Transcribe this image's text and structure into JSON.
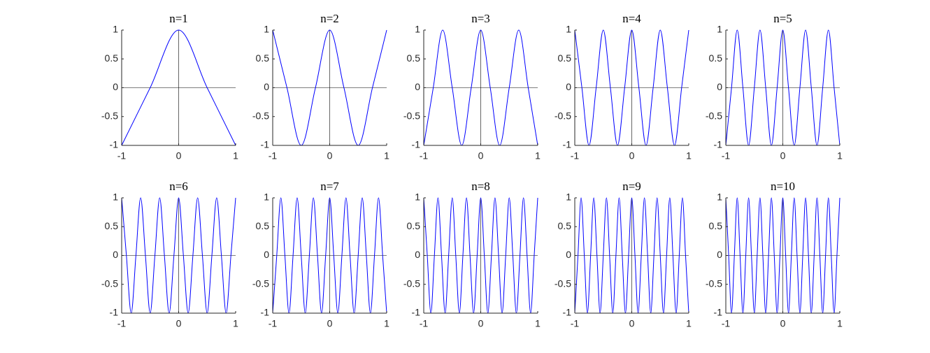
{
  "chart_data": [
    {
      "type": "line",
      "title": "n=1",
      "color": "#0000ff",
      "xlim": [
        -1,
        1
      ],
      "ylim": [
        -1,
        1
      ],
      "xticks": [
        -1,
        0,
        1
      ],
      "yticks": [
        -1,
        -0.5,
        0,
        0.5,
        1
      ],
      "zero_lines": true,
      "x": [
        -1,
        -0.5,
        0,
        0.5,
        1
      ],
      "values": [
        -1,
        0,
        1,
        0,
        -1
      ]
    },
    {
      "type": "line",
      "title": "n=2",
      "color": "#0000ff",
      "xlim": [
        -1,
        1
      ],
      "ylim": [
        -1,
        1
      ],
      "xticks": [
        -1,
        0,
        1
      ],
      "yticks": [
        -1,
        -0.5,
        0,
        0.5,
        1
      ],
      "zero_lines": true,
      "x": [
        -1,
        -0.75,
        -0.5,
        -0.25,
        0,
        0.25,
        0.5,
        0.75,
        1
      ],
      "values": [
        1,
        0,
        -1,
        0,
        1,
        0,
        -1,
        0,
        1
      ]
    },
    {
      "type": "line",
      "title": "n=3",
      "color": "#0000ff",
      "xlim": [
        -1,
        1
      ],
      "ylim": [
        -1,
        1
      ],
      "xticks": [
        -1,
        0,
        1
      ],
      "yticks": [
        -1,
        -0.5,
        0,
        0.5,
        1
      ],
      "zero_lines": true,
      "x": [
        -1,
        -0.833,
        -0.667,
        -0.5,
        -0.333,
        -0.167,
        0,
        0.167,
        0.333,
        0.5,
        0.667,
        0.833,
        1
      ],
      "values": [
        -1,
        0,
        1,
        0,
        -1,
        0,
        1,
        0,
        -1,
        0,
        1,
        0,
        -1
      ]
    },
    {
      "type": "line",
      "title": "n=4",
      "color": "#0000ff",
      "xlim": [
        -1,
        1
      ],
      "ylim": [
        -1,
        1
      ],
      "xticks": [
        -1,
        0,
        1
      ],
      "yticks": [
        -1,
        -0.5,
        0,
        0.5,
        1
      ],
      "zero_lines": true,
      "x": [
        -1,
        -0.875,
        -0.75,
        -0.625,
        -0.5,
        -0.375,
        -0.25,
        -0.125,
        0,
        0.125,
        0.25,
        0.375,
        0.5,
        0.625,
        0.75,
        0.875,
        1
      ],
      "values": [
        1,
        0,
        -1,
        0,
        1,
        0,
        -1,
        0,
        1,
        0,
        -1,
        0,
        1,
        0,
        -1,
        0,
        1
      ]
    },
    {
      "type": "line",
      "title": "n=5",
      "color": "#0000ff",
      "xlim": [
        -1,
        1
      ],
      "ylim": [
        -1,
        1
      ],
      "xticks": [
        -1,
        0,
        1
      ],
      "yticks": [
        -1,
        -0.5,
        0,
        0.5,
        1
      ],
      "zero_lines": true,
      "x": [
        -1,
        -0.9,
        -0.8,
        -0.7,
        -0.6,
        -0.5,
        -0.4,
        -0.3,
        -0.2,
        -0.1,
        0,
        0.1,
        0.2,
        0.3,
        0.4,
        0.5,
        0.6,
        0.7,
        0.8,
        0.9,
        1
      ],
      "values": [
        -1,
        0,
        1,
        0,
        -1,
        0,
        1,
        0,
        -1,
        0,
        1,
        0,
        -1,
        0,
        1,
        0,
        -1,
        0,
        1,
        0,
        -1
      ]
    },
    {
      "type": "line",
      "title": "n=6",
      "color": "#0000ff",
      "xlim": [
        -1,
        1
      ],
      "ylim": [
        -1,
        1
      ],
      "xticks": [
        -1,
        0,
        1
      ],
      "yticks": [
        -1,
        -0.5,
        0,
        0.5,
        1
      ],
      "zero_lines": true,
      "x": [
        -1,
        -0.917,
        -0.833,
        -0.75,
        -0.667,
        -0.583,
        -0.5,
        -0.417,
        -0.333,
        -0.25,
        -0.167,
        -0.083,
        0,
        0.083,
        0.167,
        0.25,
        0.333,
        0.417,
        0.5,
        0.583,
        0.667,
        0.75,
        0.833,
        0.917,
        1
      ],
      "values": [
        1,
        0,
        -1,
        0,
        1,
        0,
        -1,
        0,
        1,
        0,
        -1,
        0,
        1,
        0,
        -1,
        0,
        1,
        0,
        -1,
        0,
        1,
        0,
        -1,
        0,
        1
      ]
    },
    {
      "type": "line",
      "title": "n=7",
      "color": "#0000ff",
      "xlim": [
        -1,
        1
      ],
      "ylim": [
        -1,
        1
      ],
      "xticks": [
        -1,
        0,
        1
      ],
      "yticks": [
        -1,
        -0.5,
        0,
        0.5,
        1
      ],
      "zero_lines": true,
      "x": [
        -1,
        -0.929,
        -0.857,
        -0.786,
        -0.714,
        -0.643,
        -0.571,
        -0.5,
        -0.429,
        -0.357,
        -0.286,
        -0.214,
        -0.143,
        -0.071,
        0,
        0.071,
        0.143,
        0.214,
        0.286,
        0.357,
        0.429,
        0.5,
        0.571,
        0.643,
        0.714,
        0.786,
        0.857,
        0.929,
        1
      ],
      "values": [
        -1,
        0,
        1,
        0,
        -1,
        0,
        1,
        0,
        -1,
        0,
        1,
        0,
        -1,
        0,
        1,
        0,
        -1,
        0,
        1,
        0,
        -1,
        0,
        1,
        0,
        -1,
        0,
        1,
        0,
        -1
      ]
    },
    {
      "type": "line",
      "title": "n=8",
      "color": "#0000ff",
      "xlim": [
        -1,
        1
      ],
      "ylim": [
        -1,
        1
      ],
      "xticks": [
        -1,
        0,
        1
      ],
      "yticks": [
        -1,
        -0.5,
        0,
        0.5,
        1
      ],
      "zero_lines": true,
      "x": [
        -1,
        -0.938,
        -0.875,
        -0.813,
        -0.75,
        -0.688,
        -0.625,
        -0.563,
        -0.5,
        -0.438,
        -0.375,
        -0.313,
        -0.25,
        -0.188,
        -0.125,
        -0.063,
        0,
        0.063,
        0.125,
        0.188,
        0.25,
        0.313,
        0.375,
        0.438,
        0.5,
        0.563,
        0.625,
        0.688,
        0.75,
        0.813,
        0.875,
        0.938,
        1
      ],
      "values": [
        1,
        0,
        -1,
        0,
        1,
        0,
        -1,
        0,
        1,
        0,
        -1,
        0,
        1,
        0,
        -1,
        0,
        1,
        0,
        -1,
        0,
        1,
        0,
        -1,
        0,
        1,
        0,
        -1,
        0,
        1,
        0,
        -1,
        0,
        1
      ]
    },
    {
      "type": "line",
      "title": "n=9",
      "color": "#0000ff",
      "xlim": [
        -1,
        1
      ],
      "ylim": [
        -1,
        1
      ],
      "xticks": [
        -1,
        0,
        1
      ],
      "yticks": [
        -1,
        -0.5,
        0,
        0.5,
        1
      ],
      "zero_lines": true,
      "x": [
        -1,
        -0.944,
        -0.889,
        -0.833,
        -0.778,
        -0.722,
        -0.667,
        -0.611,
        -0.556,
        -0.5,
        -0.444,
        -0.389,
        -0.333,
        -0.278,
        -0.222,
        -0.167,
        -0.111,
        -0.056,
        0,
        0.056,
        0.111,
        0.167,
        0.222,
        0.278,
        0.333,
        0.389,
        0.444,
        0.5,
        0.556,
        0.611,
        0.667,
        0.722,
        0.778,
        0.833,
        0.889,
        0.944,
        1
      ],
      "values": [
        -1,
        0,
        1,
        0,
        -1,
        0,
        1,
        0,
        -1,
        0,
        1,
        0,
        -1,
        0,
        1,
        0,
        -1,
        0,
        1,
        0,
        -1,
        0,
        1,
        0,
        -1,
        0,
        1,
        0,
        -1,
        0,
        1,
        0,
        -1,
        0,
        1,
        0,
        -1
      ]
    },
    {
      "type": "line",
      "title": "n=10",
      "color": "#0000ff",
      "xlim": [
        -1,
        1
      ],
      "ylim": [
        -1,
        1
      ],
      "xticks": [
        -1,
        0,
        1
      ],
      "yticks": [
        -1,
        -0.5,
        0,
        0.5,
        1
      ],
      "zero_lines": true,
      "x": [
        -1,
        -0.95,
        -0.9,
        -0.85,
        -0.8,
        -0.75,
        -0.7,
        -0.65,
        -0.6,
        -0.55,
        -0.5,
        -0.45,
        -0.4,
        -0.35,
        -0.3,
        -0.25,
        -0.2,
        -0.15,
        -0.1,
        -0.05,
        0,
        0.05,
        0.1,
        0.15,
        0.2,
        0.25,
        0.3,
        0.35,
        0.4,
        0.45,
        0.5,
        0.55,
        0.6,
        0.65,
        0.7,
        0.75,
        0.8,
        0.85,
        0.9,
        0.95,
        1
      ],
      "values": [
        1,
        0,
        -1,
        0,
        1,
        0,
        -1,
        0,
        1,
        0,
        -1,
        0,
        1,
        0,
        -1,
        0,
        1,
        0,
        -1,
        0,
        1,
        0,
        -1,
        0,
        1,
        0,
        -1,
        0,
        1,
        0,
        -1,
        0,
        1,
        0,
        -1,
        0,
        1,
        0,
        -1,
        0,
        1
      ]
    }
  ]
}
